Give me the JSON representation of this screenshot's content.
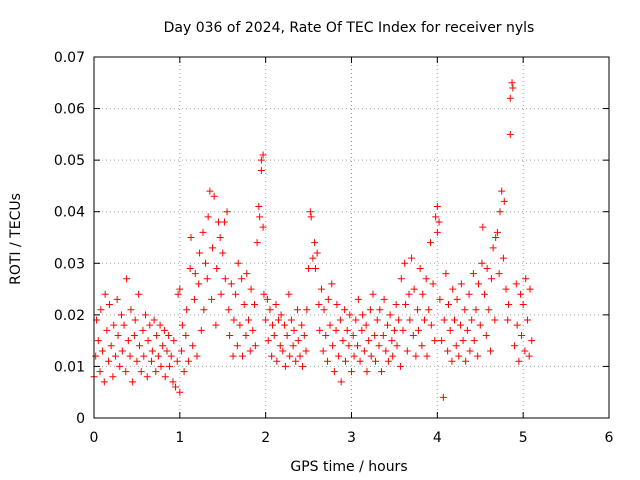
{
  "chart_data": {
    "type": "scatter",
    "title": "Day 036 of 2024, Rate Of TEC Index for receiver nyls",
    "xlabel": "GPS time / hours",
    "ylabel": "ROTI / TECUs",
    "xlim": [
      0,
      6
    ],
    "ylim": [
      0,
      0.07
    ],
    "xticks": [
      "0",
      "1",
      "2",
      "3",
      "4",
      "5",
      "6"
    ],
    "yticks": [
      "0",
      "0.01",
      "0.02",
      "0.03",
      "0.04",
      "0.05",
      "0.06",
      "0.07"
    ],
    "grid": true,
    "marker": "+",
    "color": "#ff0000",
    "series": [
      {
        "name": "ROTI",
        "points": [
          [
            0.0,
            0.008
          ],
          [
            0.02,
            0.012
          ],
          [
            0.03,
            0.019
          ],
          [
            0.05,
            0.015
          ],
          [
            0.07,
            0.009
          ],
          [
            0.08,
            0.021
          ],
          [
            0.1,
            0.013
          ],
          [
            0.12,
            0.007
          ],
          [
            0.13,
            0.024
          ],
          [
            0.15,
            0.017
          ],
          [
            0.17,
            0.011
          ],
          [
            0.18,
            0.022
          ],
          [
            0.2,
            0.014
          ],
          [
            0.22,
            0.008
          ],
          [
            0.23,
            0.018
          ],
          [
            0.25,
            0.012
          ],
          [
            0.27,
            0.023
          ],
          [
            0.28,
            0.016
          ],
          [
            0.3,
            0.01
          ],
          [
            0.32,
            0.02
          ],
          [
            0.33,
            0.013
          ],
          [
            0.35,
            0.018
          ],
          [
            0.37,
            0.009
          ],
          [
            0.38,
            0.027
          ],
          [
            0.4,
            0.015
          ],
          [
            0.42,
            0.012
          ],
          [
            0.43,
            0.021
          ],
          [
            0.45,
            0.007
          ],
          [
            0.47,
            0.016
          ],
          [
            0.48,
            0.019
          ],
          [
            0.5,
            0.011
          ],
          [
            0.52,
            0.024
          ],
          [
            0.53,
            0.014
          ],
          [
            0.55,
            0.009
          ],
          [
            0.57,
            0.017
          ],
          [
            0.58,
            0.012
          ],
          [
            0.6,
            0.02
          ],
          [
            0.62,
            0.008
          ],
          [
            0.63,
            0.015
          ],
          [
            0.65,
            0.018
          ],
          [
            0.67,
            0.011
          ],
          [
            0.68,
            0.013
          ],
          [
            0.7,
            0.019
          ],
          [
            0.72,
            0.009
          ],
          [
            0.73,
            0.016
          ],
          [
            0.75,
            0.012
          ],
          [
            0.77,
            0.018
          ],
          [
            0.78,
            0.01
          ],
          [
            0.8,
            0.014
          ],
          [
            0.82,
            0.017
          ],
          [
            0.83,
            0.008
          ],
          [
            0.85,
            0.013
          ],
          [
            0.87,
            0.016
          ],
          [
            0.88,
            0.01
          ],
          [
            0.9,
            0.012
          ],
          [
            0.92,
            0.007
          ],
          [
            0.93,
            0.015
          ],
          [
            0.95,
            0.006
          ],
          [
            0.97,
            0.011
          ],
          [
            0.98,
            0.024
          ],
          [
            1.0,
            0.005
          ],
          [
            1.0,
            0.025
          ],
          [
            1.02,
            0.013
          ],
          [
            1.03,
            0.018
          ],
          [
            1.05,
            0.009
          ],
          [
            1.07,
            0.016
          ],
          [
            1.08,
            0.021
          ],
          [
            1.1,
            0.011
          ],
          [
            1.12,
            0.029
          ],
          [
            1.13,
            0.035
          ],
          [
            1.15,
            0.014
          ],
          [
            1.17,
            0.023
          ],
          [
            1.18,
            0.028
          ],
          [
            1.2,
            0.012
          ],
          [
            1.22,
            0.026
          ],
          [
            1.23,
            0.032
          ],
          [
            1.25,
            0.017
          ],
          [
            1.27,
            0.036
          ],
          [
            1.28,
            0.021
          ],
          [
            1.3,
            0.03
          ],
          [
            1.32,
            0.027
          ],
          [
            1.33,
            0.039
          ],
          [
            1.35,
            0.044
          ],
          [
            1.37,
            0.023
          ],
          [
            1.38,
            0.033
          ],
          [
            1.4,
            0.043
          ],
          [
            1.42,
            0.018
          ],
          [
            1.43,
            0.029
          ],
          [
            1.45,
            0.038
          ],
          [
            1.47,
            0.035
          ],
          [
            1.48,
            0.024
          ],
          [
            1.5,
            0.032
          ],
          [
            1.52,
            0.038
          ],
          [
            1.53,
            0.027
          ],
          [
            1.55,
            0.04
          ],
          [
            1.57,
            0.021
          ],
          [
            1.58,
            0.016
          ],
          [
            1.6,
            0.026
          ],
          [
            1.62,
            0.012
          ],
          [
            1.63,
            0.019
          ],
          [
            1.65,
            0.024
          ],
          [
            1.67,
            0.014
          ],
          [
            1.68,
            0.03
          ],
          [
            1.7,
            0.018
          ],
          [
            1.72,
            0.027
          ],
          [
            1.73,
            0.012
          ],
          [
            1.75,
            0.022
          ],
          [
            1.77,
            0.016
          ],
          [
            1.78,
            0.028
          ],
          [
            1.8,
            0.019
          ],
          [
            1.82,
            0.013
          ],
          [
            1.83,
            0.025
          ],
          [
            1.85,
            0.017
          ],
          [
            1.87,
            0.022
          ],
          [
            1.88,
            0.014
          ],
          [
            1.9,
            0.034
          ],
          [
            1.92,
            0.041
          ],
          [
            1.93,
            0.039
          ],
          [
            1.95,
            0.05
          ],
          [
            1.95,
            0.048
          ],
          [
            1.97,
            0.037
          ],
          [
            1.97,
            0.051
          ],
          [
            1.98,
            0.024
          ],
          [
            2.0,
            0.019
          ],
          [
            2.02,
            0.023
          ],
          [
            2.03,
            0.015
          ],
          [
            2.05,
            0.021
          ],
          [
            2.07,
            0.012
          ],
          [
            2.08,
            0.018
          ],
          [
            2.1,
            0.016
          ],
          [
            2.12,
            0.022
          ],
          [
            2.13,
            0.011
          ],
          [
            2.15,
            0.019
          ],
          [
            2.17,
            0.014
          ],
          [
            2.18,
            0.02
          ],
          [
            2.2,
            0.013
          ],
          [
            2.22,
            0.018
          ],
          [
            2.23,
            0.01
          ],
          [
            2.25,
            0.016
          ],
          [
            2.27,
            0.024
          ],
          [
            2.28,
            0.012
          ],
          [
            2.3,
            0.019
          ],
          [
            2.32,
            0.014
          ],
          [
            2.33,
            0.017
          ],
          [
            2.35,
            0.011
          ],
          [
            2.37,
            0.021
          ],
          [
            2.38,
            0.015
          ],
          [
            2.4,
            0.012
          ],
          [
            2.42,
            0.018
          ],
          [
            2.43,
            0.01
          ],
          [
            2.45,
            0.016
          ],
          [
            2.47,
            0.013
          ],
          [
            2.48,
            0.021
          ],
          [
            2.5,
            0.029
          ],
          [
            2.52,
            0.04
          ],
          [
            2.53,
            0.039
          ],
          [
            2.55,
            0.031
          ],
          [
            2.57,
            0.034
          ],
          [
            2.58,
            0.029
          ],
          [
            2.6,
            0.032
          ],
          [
            2.62,
            0.022
          ],
          [
            2.63,
            0.017
          ],
          [
            2.65,
            0.025
          ],
          [
            2.67,
            0.013
          ],
          [
            2.68,
            0.021
          ],
          [
            2.7,
            0.016
          ],
          [
            2.72,
            0.011
          ],
          [
            2.73,
            0.023
          ],
          [
            2.75,
            0.018
          ],
          [
            2.77,
            0.026
          ],
          [
            2.78,
            0.014
          ],
          [
            2.8,
            0.009
          ],
          [
            2.82,
            0.017
          ],
          [
            2.83,
            0.022
          ],
          [
            2.85,
            0.012
          ],
          [
            2.87,
            0.019
          ],
          [
            2.88,
            0.007
          ],
          [
            2.9,
            0.015
          ],
          [
            2.92,
            0.021
          ],
          [
            2.93,
            0.011
          ],
          [
            2.95,
            0.017
          ],
          [
            2.97,
            0.014
          ],
          [
            2.98,
            0.02
          ],
          [
            3.0,
            0.009
          ],
          [
            3.02,
            0.016
          ],
          [
            3.03,
            0.012
          ],
          [
            3.05,
            0.019
          ],
          [
            3.07,
            0.014
          ],
          [
            3.08,
            0.023
          ],
          [
            3.1,
            0.011
          ],
          [
            3.12,
            0.017
          ],
          [
            3.13,
            0.02
          ],
          [
            3.15,
            0.013
          ],
          [
            3.17,
            0.018
          ],
          [
            3.18,
            0.009
          ],
          [
            3.2,
            0.015
          ],
          [
            3.22,
            0.021
          ],
          [
            3.23,
            0.012
          ],
          [
            3.25,
            0.024
          ],
          [
            3.27,
            0.016
          ],
          [
            3.28,
            0.011
          ],
          [
            3.3,
            0.019
          ],
          [
            3.32,
            0.014
          ],
          [
            3.33,
            0.021
          ],
          [
            3.35,
            0.009
          ],
          [
            3.37,
            0.016
          ],
          [
            3.38,
            0.023
          ],
          [
            3.4,
            0.013
          ],
          [
            3.42,
            0.018
          ],
          [
            3.43,
            0.011
          ],
          [
            3.45,
            0.02
          ],
          [
            3.47,
            0.015
          ],
          [
            3.48,
            0.012
          ],
          [
            3.5,
            0.017
          ],
          [
            3.52,
            0.022
          ],
          [
            3.53,
            0.014
          ],
          [
            3.55,
            0.019
          ],
          [
            3.57,
            0.01
          ],
          [
            3.58,
            0.027
          ],
          [
            3.6,
            0.017
          ],
          [
            3.62,
            0.03
          ],
          [
            3.63,
            0.022
          ],
          [
            3.65,
            0.013
          ],
          [
            3.67,
            0.024
          ],
          [
            3.68,
            0.019
          ],
          [
            3.7,
            0.031
          ],
          [
            3.72,
            0.016
          ],
          [
            3.73,
            0.025
          ],
          [
            3.75,
            0.012
          ],
          [
            3.77,
            0.021
          ],
          [
            3.78,
            0.017
          ],
          [
            3.8,
            0.029
          ],
          [
            3.82,
            0.014
          ],
          [
            3.83,
            0.024
          ],
          [
            3.85,
            0.019
          ],
          [
            3.87,
            0.027
          ],
          [
            3.88,
            0.012
          ],
          [
            3.9,
            0.021
          ],
          [
            3.92,
            0.034
          ],
          [
            3.93,
            0.018
          ],
          [
            3.95,
            0.026
          ],
          [
            3.97,
            0.015
          ],
          [
            3.98,
            0.039
          ],
          [
            4.0,
            0.041
          ],
          [
            4.0,
            0.036
          ],
          [
            4.02,
            0.038
          ],
          [
            4.03,
            0.023
          ],
          [
            4.05,
            0.015
          ],
          [
            4.07,
            0.004
          ],
          [
            4.08,
            0.019
          ],
          [
            4.1,
            0.028
          ],
          [
            4.12,
            0.013
          ],
          [
            4.13,
            0.022
          ],
          [
            4.15,
            0.017
          ],
          [
            4.17,
            0.011
          ],
          [
            4.18,
            0.025
          ],
          [
            4.2,
            0.019
          ],
          [
            4.22,
            0.014
          ],
          [
            4.23,
            0.023
          ],
          [
            4.25,
            0.012
          ],
          [
            4.27,
            0.018
          ],
          [
            4.28,
            0.026
          ],
          [
            4.3,
            0.015
          ],
          [
            4.32,
            0.021
          ],
          [
            4.33,
            0.011
          ],
          [
            4.35,
            0.017
          ],
          [
            4.37,
            0.024
          ],
          [
            4.38,
            0.013
          ],
          [
            4.4,
            0.019
          ],
          [
            4.42,
            0.028
          ],
          [
            4.43,
            0.015
          ],
          [
            4.45,
            0.021
          ],
          [
            4.47,
            0.012
          ],
          [
            4.48,
            0.026
          ],
          [
            4.5,
            0.018
          ],
          [
            4.52,
            0.03
          ],
          [
            4.53,
            0.037
          ],
          [
            4.55,
            0.024
          ],
          [
            4.57,
            0.016
          ],
          [
            4.58,
            0.029
          ],
          [
            4.6,
            0.021
          ],
          [
            4.62,
            0.013
          ],
          [
            4.63,
            0.027
          ],
          [
            4.65,
            0.033
          ],
          [
            4.67,
            0.019
          ],
          [
            4.68,
            0.035
          ],
          [
            4.7,
            0.036
          ],
          [
            4.72,
            0.028
          ],
          [
            4.73,
            0.04
          ],
          [
            4.75,
            0.044
          ],
          [
            4.77,
            0.031
          ],
          [
            4.78,
            0.042
          ],
          [
            4.8,
            0.025
          ],
          [
            4.82,
            0.019
          ],
          [
            4.83,
            0.022
          ],
          [
            4.85,
            0.062
          ],
          [
            4.85,
            0.055
          ],
          [
            4.87,
            0.065
          ],
          [
            4.88,
            0.064
          ],
          [
            4.9,
            0.014
          ],
          [
            4.92,
            0.026
          ],
          [
            4.93,
            0.018
          ],
          [
            4.95,
            0.011
          ],
          [
            4.97,
            0.024
          ],
          [
            4.98,
            0.016
          ],
          [
            5.0,
            0.022
          ],
          [
            5.02,
            0.013
          ],
          [
            5.03,
            0.027
          ],
          [
            5.05,
            0.019
          ],
          [
            5.07,
            0.012
          ],
          [
            5.08,
            0.025
          ],
          [
            5.1,
            0.015
          ]
        ]
      }
    ]
  }
}
